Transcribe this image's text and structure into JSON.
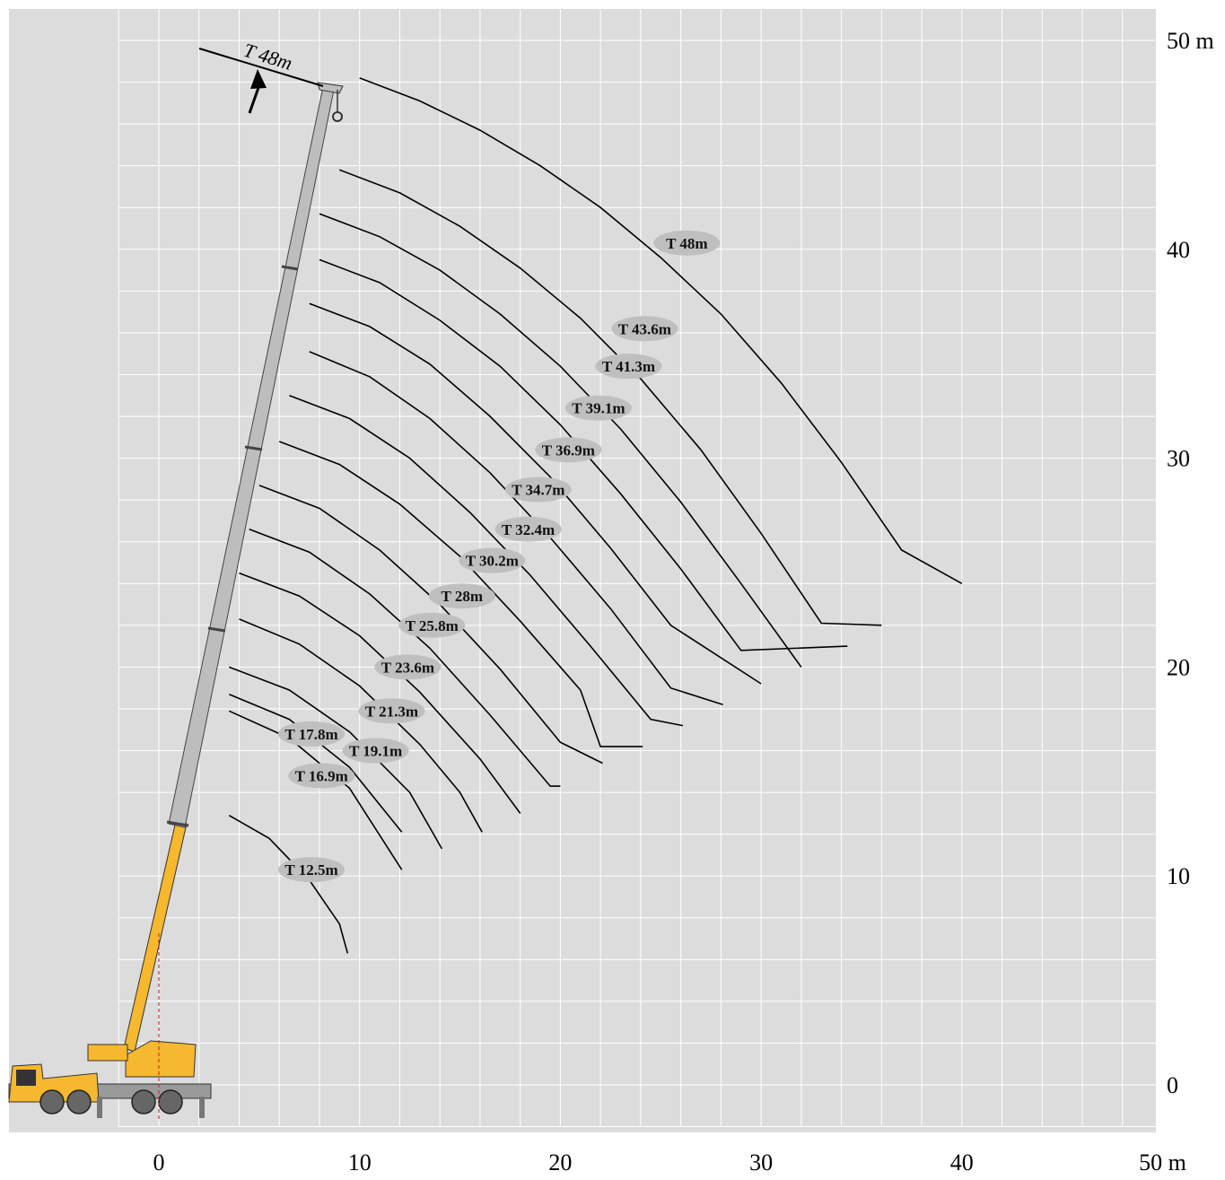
{
  "chart_data": {
    "type": "line",
    "title": "",
    "xlabel": "",
    "ylabel": "",
    "xlim": [
      -7,
      50
    ],
    "ylim": [
      -2.5,
      52
    ],
    "x_tick_labels": [
      "0",
      "10",
      "20",
      "30",
      "40",
      "50 m"
    ],
    "y_tick_labels": [
      "0",
      "10",
      "20",
      "30",
      "40",
      "50 m"
    ],
    "grid": true,
    "boom_annotation": "T 48m",
    "series": [
      {
        "name": "T 48m",
        "label_at": [
          26.3,
          40.3
        ],
        "points": [
          [
            10.0,
            48.2
          ],
          [
            13.0,
            47.1
          ],
          [
            16.0,
            45.7
          ],
          [
            19.0,
            44.0
          ],
          [
            22.0,
            42.0
          ],
          [
            25.0,
            39.6
          ],
          [
            28.0,
            36.9
          ],
          [
            31.0,
            33.6
          ],
          [
            34.0,
            29.8
          ],
          [
            37.0,
            25.6
          ],
          [
            40.0,
            24.0
          ]
        ]
      },
      {
        "name": "T 43.6m",
        "label_at": [
          24.2,
          36.2
        ],
        "points": [
          [
            9.0,
            43.8
          ],
          [
            12.0,
            42.7
          ],
          [
            15.0,
            41.1
          ],
          [
            18.0,
            39.1
          ],
          [
            21.0,
            36.7
          ],
          [
            24.0,
            33.8
          ],
          [
            27.0,
            30.4
          ],
          [
            30.0,
            26.4
          ],
          [
            33.0,
            22.1
          ],
          [
            36.0,
            22.0
          ]
        ]
      },
      {
        "name": "T 41.3m",
        "label_at": [
          23.4,
          34.4
        ],
        "points": [
          [
            8.0,
            41.7
          ],
          [
            11.0,
            40.6
          ],
          [
            14.0,
            39.0
          ],
          [
            17.0,
            36.9
          ],
          [
            20.0,
            34.4
          ],
          [
            23.0,
            31.4
          ],
          [
            26.0,
            27.9
          ],
          [
            29.0,
            24.0
          ],
          [
            32.0,
            20.0
          ]
        ]
      },
      {
        "name": "T 39.1m",
        "label_at": [
          21.9,
          32.4
        ],
        "points": [
          [
            8.0,
            39.5
          ],
          [
            11.0,
            38.4
          ],
          [
            14.0,
            36.6
          ],
          [
            17.0,
            34.4
          ],
          [
            20.0,
            31.6
          ],
          [
            23.0,
            28.3
          ],
          [
            26.0,
            24.7
          ],
          [
            29.0,
            20.8
          ],
          [
            34.3,
            21.0
          ]
        ]
      },
      {
        "name": "T 36.9m",
        "label_at": [
          20.4,
          30.4
        ],
        "points": [
          [
            7.5,
            37.4
          ],
          [
            10.5,
            36.3
          ],
          [
            13.5,
            34.5
          ],
          [
            16.5,
            32.0
          ],
          [
            19.5,
            29.1
          ],
          [
            22.5,
            25.7
          ],
          [
            25.5,
            22.0
          ],
          [
            30.0,
            19.2
          ]
        ]
      },
      {
        "name": "T 34.7m",
        "label_at": [
          18.9,
          28.5
        ],
        "points": [
          [
            7.5,
            35.1
          ],
          [
            10.5,
            33.9
          ],
          [
            13.5,
            31.9
          ],
          [
            16.5,
            29.3
          ],
          [
            19.5,
            26.2
          ],
          [
            22.5,
            22.8
          ],
          [
            25.5,
            19.0
          ],
          [
            28.1,
            18.2
          ]
        ]
      },
      {
        "name": "T 32.4m",
        "label_at": [
          18.4,
          26.6
        ],
        "points": [
          [
            6.5,
            33.0
          ],
          [
            9.5,
            31.9
          ],
          [
            12.5,
            30.0
          ],
          [
            15.5,
            27.4
          ],
          [
            18.5,
            24.4
          ],
          [
            21.5,
            21.0
          ],
          [
            24.5,
            17.5
          ],
          [
            26.1,
            17.2
          ]
        ]
      },
      {
        "name": "T 30.2m",
        "label_at": [
          16.6,
          25.1
        ],
        "points": [
          [
            6.0,
            30.8
          ],
          [
            9.0,
            29.7
          ],
          [
            12.0,
            27.8
          ],
          [
            15.0,
            25.3
          ],
          [
            18.0,
            22.2
          ],
          [
            21.0,
            18.9
          ],
          [
            22.0,
            16.2
          ],
          [
            24.1,
            16.2
          ]
        ]
      },
      {
        "name": "T 28m",
        "label_at": [
          15.1,
          23.4
        ],
        "points": [
          [
            5.0,
            28.7
          ],
          [
            8.0,
            27.6
          ],
          [
            11.0,
            25.6
          ],
          [
            14.0,
            23.0
          ],
          [
            17.0,
            19.9
          ],
          [
            20.0,
            16.4
          ],
          [
            22.1,
            15.4
          ]
        ]
      },
      {
        "name": "T 25.8m",
        "label_at": [
          13.6,
          22.0
        ],
        "points": [
          [
            4.5,
            26.6
          ],
          [
            7.5,
            25.5
          ],
          [
            10.5,
            23.5
          ],
          [
            13.5,
            20.9
          ],
          [
            16.5,
            17.7
          ],
          [
            19.5,
            14.3
          ],
          [
            20.0,
            14.3
          ]
        ]
      },
      {
        "name": "T 23.6m",
        "label_at": [
          12.4,
          20.0
        ],
        "points": [
          [
            4.0,
            24.5
          ],
          [
            7.0,
            23.4
          ],
          [
            10.0,
            21.5
          ],
          [
            13.0,
            18.8
          ],
          [
            16.0,
            15.6
          ],
          [
            18.0,
            13.0
          ]
        ]
      },
      {
        "name": "T 21.3m",
        "label_at": [
          11.6,
          17.9
        ],
        "points": [
          [
            4.0,
            22.3
          ],
          [
            7.0,
            21.1
          ],
          [
            10.0,
            19.1
          ],
          [
            13.0,
            16.3
          ],
          [
            15.0,
            14.0
          ],
          [
            16.1,
            12.1
          ]
        ]
      },
      {
        "name": "T 19.1m",
        "label_at": [
          10.8,
          16.0
        ],
        "points": [
          [
            3.5,
            20.0
          ],
          [
            6.5,
            18.9
          ],
          [
            9.5,
            16.9
          ],
          [
            12.5,
            14.0
          ],
          [
            14.1,
            11.3
          ]
        ]
      },
      {
        "name": "T 17.8m",
        "label_at": [
          7.6,
          16.8
        ],
        "points": [
          [
            3.5,
            18.7
          ],
          [
            6.5,
            17.5
          ],
          [
            9.5,
            15.2
          ],
          [
            12.1,
            12.1
          ]
        ]
      },
      {
        "name": "T 16.9m",
        "label_at": [
          8.1,
          14.8
        ],
        "points": [
          [
            3.5,
            17.9
          ],
          [
            6.5,
            16.6
          ],
          [
            9.5,
            14.2
          ],
          [
            12.1,
            10.3
          ]
        ]
      },
      {
        "name": "T 12.5m",
        "label_at": [
          7.6,
          10.3
        ],
        "points": [
          [
            3.5,
            12.9
          ],
          [
            5.5,
            11.8
          ],
          [
            7.5,
            9.8
          ],
          [
            9.0,
            7.7
          ],
          [
            9.4,
            6.3
          ]
        ]
      }
    ]
  },
  "colors": {
    "background": "#dcdcdc",
    "grid": "#ffffff",
    "curve": "#000000",
    "label_bubble": "#bfbfbf",
    "boom_yellow": "#f5b82e",
    "boom_gray": "#bdbdbd",
    "crane_body": "#f5b82e"
  }
}
